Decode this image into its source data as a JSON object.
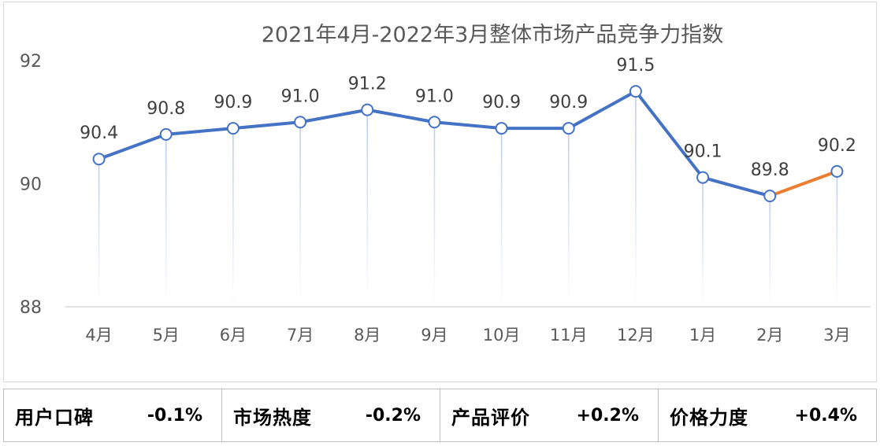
{
  "chart_data": {
    "type": "line",
    "title": "2021年4月-2022年3月整体市场产品竞争力指数",
    "categories": [
      "4月",
      "5月",
      "6月",
      "7月",
      "8月",
      "9月",
      "10月",
      "11月",
      "12月",
      "1月",
      "2月",
      "3月"
    ],
    "values": [
      90.4,
      90.8,
      90.9,
      91.0,
      91.2,
      91.0,
      90.9,
      90.9,
      91.5,
      90.1,
      89.8,
      90.2
    ],
    "data_labels": [
      "90.4",
      "90.8",
      "90.9",
      "91.0",
      "91.2",
      "91.0",
      "90.9",
      "90.9",
      "91.5",
      "90.1",
      "89.8",
      "90.2"
    ],
    "ylim": [
      88,
      92
    ],
    "yticks": [
      "88",
      "90",
      "92"
    ],
    "xlabel": "",
    "ylabel": "",
    "grid": false,
    "colors": {
      "line": "#4472c4",
      "last_segment": "#ed7d31",
      "drop_line": "#b4c7e7",
      "axis": "#d9d9d9"
    }
  },
  "summary": [
    {
      "label": "用户口碑",
      "value": "-0.1%"
    },
    {
      "label": "市场热度",
      "value": "-0.2%"
    },
    {
      "label": "产品评价",
      "value": "+0.2%"
    },
    {
      "label": "价格力度",
      "value": "+0.4%"
    }
  ]
}
